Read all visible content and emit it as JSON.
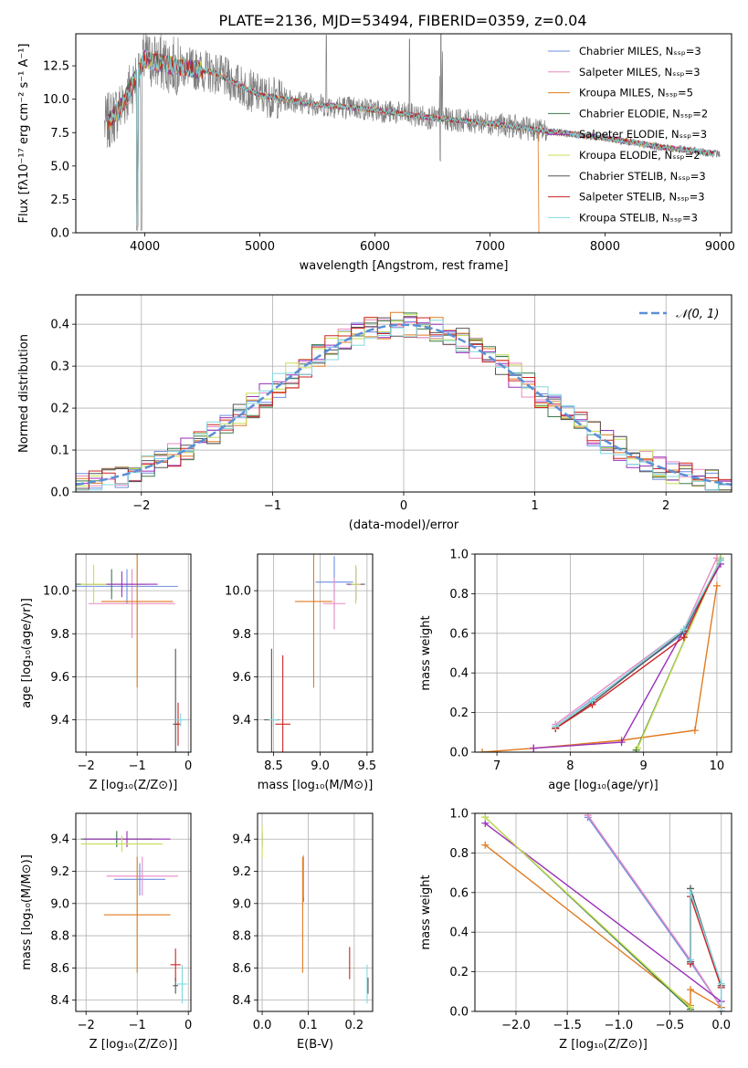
{
  "colors": {
    "chab_miles": "#6d8ee0",
    "salp_miles": "#e88ac0",
    "krou_miles": "#e07b22",
    "chab_elod": "#3a7a48",
    "salp_elod": "#9a2fb8",
    "krou_elod": "#c8de55",
    "chab_stel": "#555555",
    "salp_stel": "#cc2222",
    "krou_stel": "#80d8e0",
    "data_grey": "#808080",
    "normal": "#5b8fd6"
  },
  "chart_data": [
    {
      "id": "spectrum",
      "type": "line",
      "title": "PLATE=2136, MJD=53494, FIBERID=0359, z=0.04",
      "xlabel": "wavelength [Angstrom, rest frame]",
      "ylabel": "Flux [fλ10⁻¹⁷ erg cm⁻² s⁻¹ A⁻¹]",
      "xlim": [
        3400,
        9100
      ],
      "ylim": [
        0,
        14.9
      ],
      "xticks": [
        "4000",
        "5000",
        "6000",
        "7000",
        "8000",
        "9000"
      ],
      "yticks": [
        "0.0",
        "2.5",
        "5.0",
        "7.5",
        "10.0",
        "12.5"
      ],
      "legend_position": "top-right",
      "series": [
        {
          "name": "Chabrier MILES, Nₛₛₚ=3",
          "key": "chab_miles"
        },
        {
          "name": "Salpeter MILES, Nₛₛₚ=3",
          "key": "salp_miles"
        },
        {
          "name": "Kroupa MILES, Nₛₛₚ=5",
          "key": "krou_miles"
        },
        {
          "name": "Chabrier ELODIE, Nₛₛₚ=2",
          "key": "chab_elod"
        },
        {
          "name": "Salpeter ELODIE, Nₛₛₚ=3",
          "key": "salp_elod"
        },
        {
          "name": "Kroupa ELODIE, Nₛₛₚ=2",
          "key": "krou_elod"
        },
        {
          "name": "Chabrier STELIB, Nₛₛₚ=3",
          "key": "chab_stel"
        },
        {
          "name": "Salpeter STELIB, Nₛₛₚ=3",
          "key": "salp_stel"
        },
        {
          "name": "Kroupa STELIB, Nₛₛₚ=3",
          "key": "krou_stel"
        }
      ],
      "continuum": {
        "x": [
          3650,
          3800,
          4000,
          4200,
          4600,
          5000,
          5500,
          6000,
          6500,
          7000,
          7500,
          8000,
          8500,
          9000
        ],
        "y": [
          8.0,
          9.5,
          13.0,
          12.6,
          12.0,
          10.3,
          9.6,
          9.2,
          8.6,
          8.2,
          7.6,
          7.1,
          6.4,
          5.9
        ]
      }
    },
    {
      "id": "residuals",
      "type": "line",
      "xlabel": "(data-model)/error",
      "ylabel": "Normed distribution",
      "xlim": [
        -2.5,
        2.5
      ],
      "ylim": [
        0,
        0.47
      ],
      "xticks": [
        "−2",
        "−1",
        "0",
        "1",
        "2"
      ],
      "yticks": [
        "0.0",
        "0.1",
        "0.2",
        "0.3",
        "0.4"
      ],
      "legend": "𝒩(0, 1)",
      "legend_position": "top-right",
      "bin_width": 0.1
    },
    {
      "id": "age_vs_Z",
      "type": "scatter",
      "xlabel": "Z [log₁₀(Z/Z⊙)]",
      "ylabel": "age  [log₁₀(age/yr)]",
      "xlim": [
        -2.2,
        0.05
      ],
      "ylim": [
        9.25,
        10.17
      ],
      "xticks": [
        "−2",
        "−1",
        "0"
      ],
      "yticks": [
        "9.4",
        "9.6",
        "9.8",
        "10.0"
      ],
      "points": [
        {
          "key": "chab_miles",
          "x": -1.2,
          "y": 10.02,
          "ex": 1.0,
          "ey": 0.08
        },
        {
          "key": "salp_miles",
          "x": -1.1,
          "y": 9.94,
          "ex": 0.85,
          "ey": 0.16
        },
        {
          "key": "krou_miles",
          "x": -1.0,
          "y": 9.95,
          "ex": 0.7,
          "ey": 0.4
        },
        {
          "key": "chab_elod",
          "x": -1.5,
          "y": 10.03,
          "ex": 0.7,
          "ey": 0.07
        },
        {
          "key": "salp_elod",
          "x": -1.3,
          "y": 10.03,
          "ex": 0.7,
          "ey": 0.06
        },
        {
          "key": "krou_elod",
          "x": -1.85,
          "y": 10.03,
          "ex": 0.25,
          "ey": 0.09
        },
        {
          "key": "chab_stel",
          "x": -0.25,
          "y": 9.38,
          "ex": 0.05,
          "ey": 0.35
        },
        {
          "key": "salp_stel",
          "x": -0.2,
          "y": 9.38,
          "ex": 0.05,
          "ey": 0.1
        },
        {
          "key": "krou_stel",
          "x": -0.15,
          "y": 9.4,
          "ex": 0.1,
          "ey": 0.03
        }
      ]
    },
    {
      "id": "age_vs_mass",
      "type": "scatter",
      "xlabel": "mass [log₁₀(M/M⊙)]",
      "xlim": [
        8.33,
        9.56
      ],
      "ylim": [
        9.25,
        10.17
      ],
      "xticks": [
        "8.5",
        "9.0",
        "9.5"
      ],
      "yticks": [
        "9.4",
        "9.6",
        "9.8",
        "10.0"
      ],
      "points": [
        {
          "key": "chab_miles",
          "x": 9.15,
          "y": 10.04,
          "ex": 0.2,
          "ey": 0.12
        },
        {
          "key": "salp_miles",
          "x": 9.15,
          "y": 9.94,
          "ex": 0.12,
          "ey": 0.12
        },
        {
          "key": "krou_miles",
          "x": 8.93,
          "y": 9.95,
          "ex": 0.2,
          "ey": 0.4
        },
        {
          "key": "chab_elod",
          "x": 9.38,
          "y": 10.03,
          "ex": 0.1,
          "ey": 0.08
        },
        {
          "key": "salp_elod",
          "x": 9.38,
          "y": 10.03,
          "ex": 0.08,
          "ey": 0.07
        },
        {
          "key": "krou_elod",
          "x": 9.38,
          "y": 10.03,
          "ex": 0.05,
          "ey": 0.09
        },
        {
          "key": "chab_stel",
          "x": 8.48,
          "y": 9.4,
          "ex": 0.08,
          "ey": 0.33
        },
        {
          "key": "salp_stel",
          "x": 8.6,
          "y": 9.38,
          "ex": 0.08,
          "ey": 0.32
        },
        {
          "key": "krou_stel",
          "x": 8.5,
          "y": 9.4,
          "ex": 0.05,
          "ey": 0.03
        }
      ]
    },
    {
      "id": "weight_vs_age",
      "type": "line",
      "xlabel": "age  [log₁₀(age/yr)]",
      "ylabel": "mass weight",
      "xlim": [
        6.7,
        10.2
      ],
      "ylim": [
        0,
        1
      ],
      "xticks": [
        "7",
        "8",
        "9",
        "10"
      ],
      "yticks": [
        "0.0",
        "0.2",
        "0.4",
        "0.6",
        "0.8",
        "1.0"
      ],
      "series": [
        {
          "key": "chab_miles",
          "x": [
            7.8,
            9.55,
            10.05
          ],
          "y": [
            0.13,
            0.6,
            0.97
          ]
        },
        {
          "key": "salp_miles",
          "x": [
            7.8,
            9.55,
            10.0
          ],
          "y": [
            0.14,
            0.62,
            0.98
          ]
        },
        {
          "key": "krou_miles",
          "x": [
            6.8,
            7.5,
            8.7,
            9.7,
            10.0
          ],
          "y": [
            0.0,
            0.02,
            0.06,
            0.11,
            0.84
          ]
        },
        {
          "key": "chab_elod",
          "x": [
            8.9,
            10.05
          ],
          "y": [
            0.01,
            0.98
          ]
        },
        {
          "key": "salp_elod",
          "x": [
            7.5,
            8.7,
            10.05
          ],
          "y": [
            0.02,
            0.05,
            0.95
          ]
        },
        {
          "key": "krou_elod",
          "x": [
            8.92,
            10.05
          ],
          "y": [
            0.02,
            0.98
          ]
        },
        {
          "key": "chab_stel",
          "x": [
            7.8,
            8.3,
            9.55,
            10.05
          ],
          "y": [
            0.12,
            0.25,
            0.61,
            0.97
          ]
        },
        {
          "key": "salp_stel",
          "x": [
            7.8,
            8.3,
            9.55,
            10.05
          ],
          "y": [
            0.12,
            0.24,
            0.58,
            0.97
          ]
        },
        {
          "key": "krou_stel",
          "x": [
            7.8,
            8.3,
            9.55,
            10.05
          ],
          "y": [
            0.13,
            0.26,
            0.62,
            0.97
          ]
        }
      ]
    },
    {
      "id": "mass_vs_Z",
      "type": "scatter",
      "xlabel": "Z [log₁₀(Z/Z⊙)]",
      "ylabel": "mass [log₁₀(M/M⊙)]",
      "xlim": [
        -2.2,
        0.05
      ],
      "ylim": [
        8.33,
        9.56
      ],
      "xticks": [
        "−2",
        "−1",
        "0"
      ],
      "yticks": [
        "8.4",
        "8.6",
        "8.8",
        "9.0",
        "9.2",
        "9.4"
      ],
      "points": [
        {
          "key": "chab_miles",
          "x": -0.95,
          "y": 9.15,
          "ex": 0.5,
          "ey": 0.1
        },
        {
          "key": "salp_miles",
          "x": -0.9,
          "y": 9.17,
          "ex": 0.7,
          "ey": 0.12
        },
        {
          "key": "krou_miles",
          "x": -1.0,
          "y": 8.93,
          "ex": 0.65,
          "ey": 0.36
        },
        {
          "key": "chab_elod",
          "x": -1.4,
          "y": 9.4,
          "ex": 0.7,
          "ey": 0.05
        },
        {
          "key": "salp_elod",
          "x": -1.2,
          "y": 9.4,
          "ex": 0.85,
          "ey": 0.05
        },
        {
          "key": "krou_elod",
          "x": -1.3,
          "y": 9.37,
          "ex": 0.8,
          "ey": 0.05
        },
        {
          "key": "chab_stel",
          "x": -0.25,
          "y": 8.49,
          "ex": 0.05,
          "ey": 0.05
        },
        {
          "key": "salp_stel",
          "x": -0.25,
          "y": 8.62,
          "ex": 0.1,
          "ey": 0.1
        },
        {
          "key": "krou_stel",
          "x": -0.12,
          "y": 8.5,
          "ex": 0.1,
          "ey": 0.12
        }
      ]
    },
    {
      "id": "mass_vs_ebv",
      "type": "scatter",
      "xlabel": "E(B-V)",
      "xlim": [
        -0.01,
        0.24
      ],
      "ylim": [
        8.33,
        9.56
      ],
      "xticks": [
        "0.0",
        "0.1",
        "0.2"
      ],
      "yticks": [
        "8.4",
        "8.6",
        "8.8",
        "9.0",
        "9.2",
        "9.4"
      ],
      "points": [
        {
          "key": "chab_miles",
          "x": 0.09,
          "y": 9.15,
          "ex": 0,
          "ey": 0.14
        },
        {
          "key": "salp_miles",
          "x": 0.09,
          "y": 9.17,
          "ex": 0,
          "ey": 0.13
        },
        {
          "key": "krou_miles",
          "x": 0.088,
          "y": 8.93,
          "ex": 0,
          "ey": 0.36
        },
        {
          "key": "chab_elod",
          "x": 0.0,
          "y": 9.4,
          "ex": 0,
          "ey": 0.05
        },
        {
          "key": "salp_elod",
          "x": 0.0,
          "y": 9.4,
          "ex": 0,
          "ey": 0.03
        },
        {
          "key": "krou_elod",
          "x": 0.0,
          "y": 9.38,
          "ex": 0,
          "ey": 0.1
        },
        {
          "key": "chab_stel",
          "x": 0.23,
          "y": 8.49,
          "ex": 0,
          "ey": 0.05
        },
        {
          "key": "salp_stel",
          "x": 0.19,
          "y": 8.63,
          "ex": 0,
          "ey": 0.1
        },
        {
          "key": "krou_stel",
          "x": 0.228,
          "y": 8.5,
          "ex": 0,
          "ey": 0.12
        }
      ]
    },
    {
      "id": "weight_vs_Z",
      "type": "line",
      "xlabel": "Z [log₁₀(Z/Z⊙)]",
      "ylabel": "mass weight",
      "xlim": [
        -2.4,
        0.1
      ],
      "ylim": [
        0,
        1
      ],
      "xticks": [
        "−2.0",
        "−1.5",
        "−1.0",
        "−0.5",
        "0.0"
      ],
      "yticks": [
        "0.0",
        "0.2",
        "0.4",
        "0.6",
        "0.8",
        "1.0"
      ],
      "series": [
        {
          "key": "chab_miles",
          "x": [
            -1.3,
            -0.3,
            0.0
          ],
          "y": [
            0.98,
            0.25,
            0.02
          ]
        },
        {
          "key": "salp_miles",
          "x": [
            -1.3,
            -0.3,
            0.0
          ],
          "y": [
            0.99,
            0.26,
            0.02
          ]
        },
        {
          "key": "krou_miles",
          "x": [
            -2.3,
            -0.3,
            -0.3,
            0.0
          ],
          "y": [
            0.84,
            0.03,
            0.11,
            0.02
          ]
        },
        {
          "key": "chab_elod",
          "x": [
            -2.3,
            -0.3
          ],
          "y": [
            0.98,
            0.01
          ]
        },
        {
          "key": "salp_elod",
          "x": [
            -2.3,
            0.0,
            0.0
          ],
          "y": [
            0.95,
            0.05,
            0.0
          ]
        },
        {
          "key": "krou_elod",
          "x": [
            -2.3,
            -0.3
          ],
          "y": [
            0.98,
            0.02
          ]
        },
        {
          "key": "chab_stel",
          "x": [
            -0.3,
            -0.3,
            0.0,
            0.0
          ],
          "y": [
            0.25,
            0.62,
            0.13,
            0.0
          ]
        },
        {
          "key": "salp_stel",
          "x": [
            -0.3,
            -0.3,
            0.0
          ],
          "y": [
            0.24,
            0.58,
            0.12
          ]
        },
        {
          "key": "krou_stel",
          "x": [
            -0.3,
            -0.3,
            0.0,
            0.0
          ],
          "y": [
            0.26,
            0.6,
            0.14,
            0.0
          ]
        }
      ]
    }
  ]
}
